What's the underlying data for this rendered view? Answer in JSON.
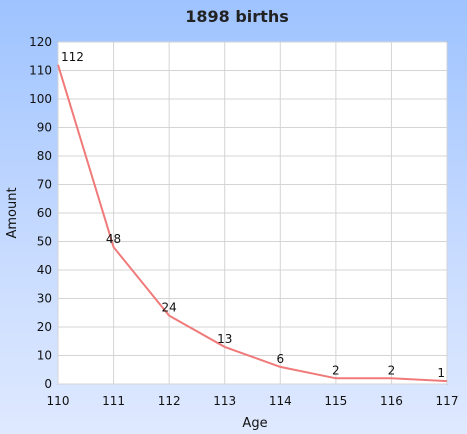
{
  "chart_data": {
    "type": "line",
    "title": "1898 births",
    "xlabel": "Age",
    "ylabel": "Amount",
    "x": [
      110,
      111,
      112,
      113,
      114,
      115,
      116,
      117
    ],
    "y": [
      112,
      48,
      24,
      13,
      6,
      2,
      2,
      1
    ],
    "xlim": [
      110,
      117
    ],
    "ylim": [
      0,
      120
    ],
    "yticks": [
      0,
      10,
      20,
      30,
      40,
      50,
      60,
      70,
      80,
      90,
      100,
      110,
      120
    ],
    "xticks": [
      110,
      111,
      112,
      113,
      114,
      115,
      116,
      117
    ],
    "grid": true,
    "line_color": "#f07a7a"
  }
}
